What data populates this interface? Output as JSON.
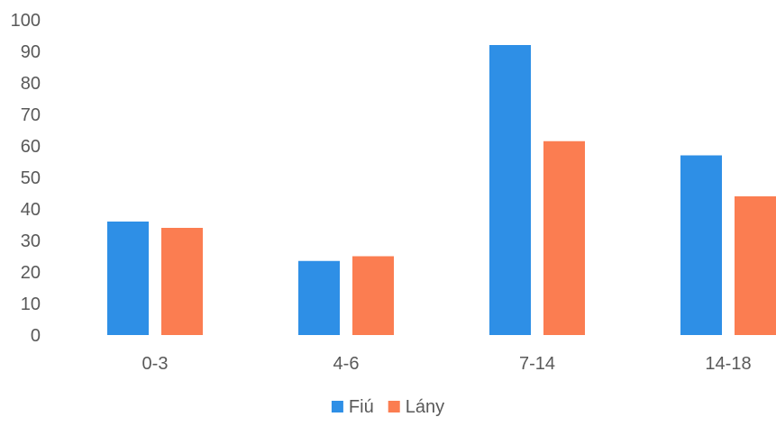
{
  "chart_data": {
    "type": "bar",
    "categories": [
      "0-3",
      "4-6",
      "7-14",
      "14-18"
    ],
    "series": [
      {
        "name": "Fiú",
        "values": [
          36,
          23.5,
          92,
          57
        ],
        "color": "#2e8fe6"
      },
      {
        "name": "Lány",
        "values": [
          34,
          25,
          61.5,
          44
        ],
        "color": "#fb7d51"
      }
    ],
    "xlabel": "",
    "ylabel": "",
    "ylim": [
      0,
      100
    ],
    "yticks": [
      0,
      10,
      20,
      30,
      40,
      50,
      60,
      70,
      80,
      90,
      100
    ],
    "grid": false,
    "legend": "bottom-center"
  }
}
